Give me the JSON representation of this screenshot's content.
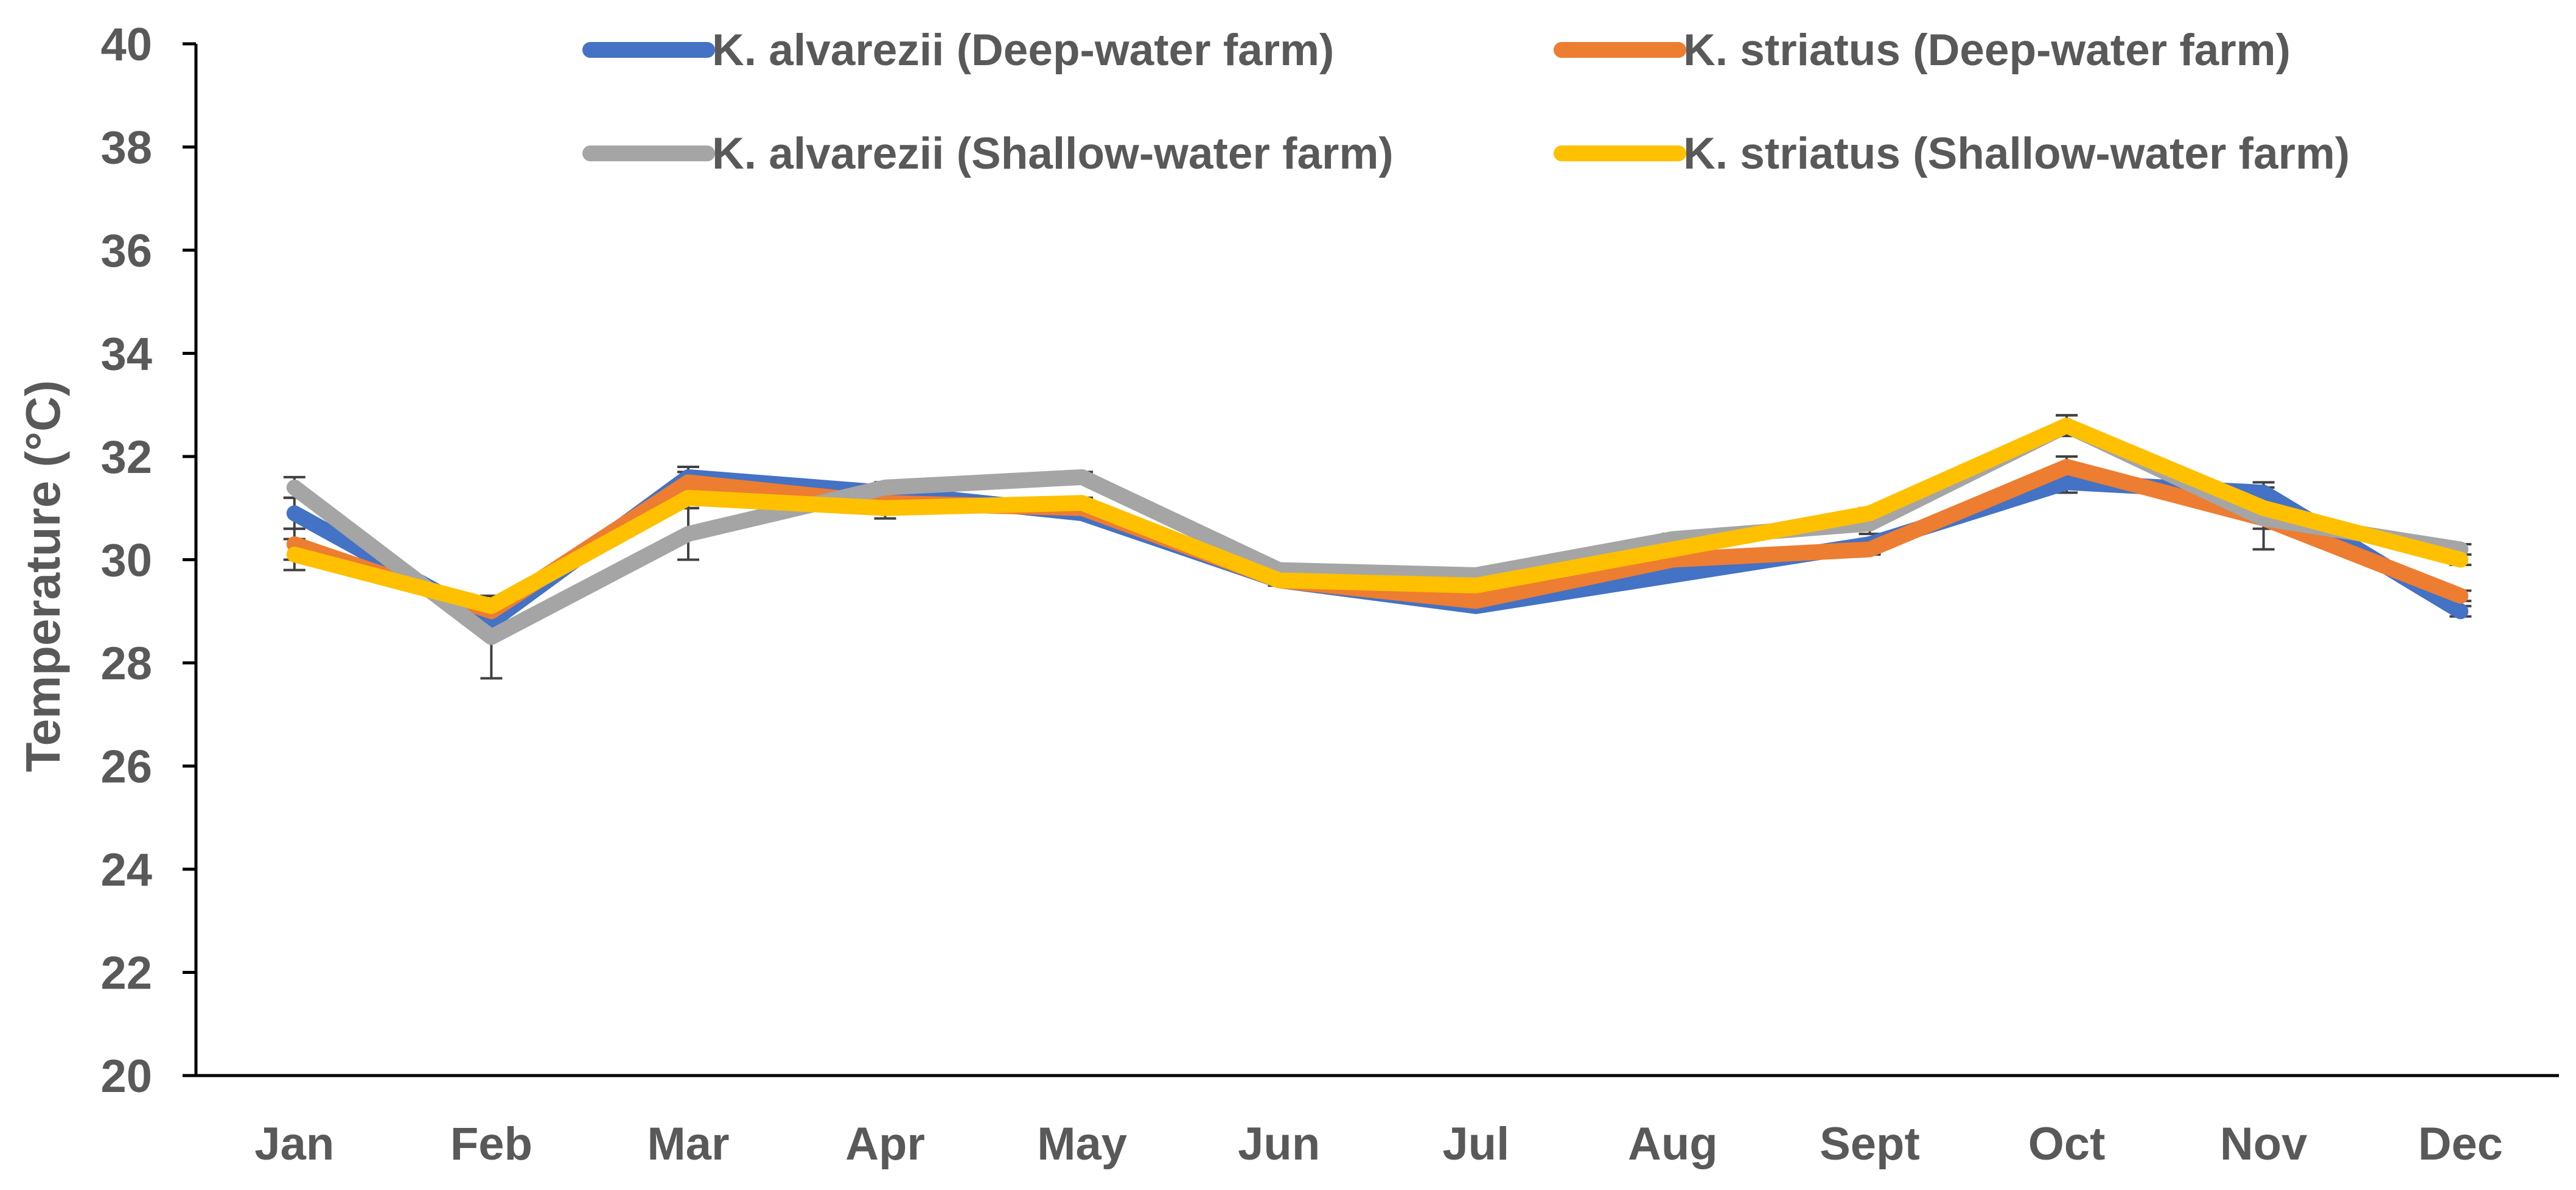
{
  "chart_data": {
    "type": "line",
    "title": "",
    "xlabel": "",
    "ylabel": "Temperature (°C)",
    "ylim": [
      20,
      40
    ],
    "yticks": [
      "20",
      "22",
      "24",
      "26",
      "28",
      "30",
      "32",
      "34",
      "36",
      "38",
      "40"
    ],
    "categories": [
      "Jan",
      "Feb",
      "Mar",
      "Apr",
      "May",
      "Jun",
      "Jul",
      "Aug",
      "Sept",
      "Oct",
      "Nov",
      "Dec"
    ],
    "grid": false,
    "legend_position": "top",
    "series": [
      {
        "name": "K. alvarezii (Deep-water farm)",
        "color": "#4472C4",
        "values": [
          30.9,
          28.8,
          31.6,
          31.3,
          30.9,
          29.6,
          29.1,
          29.7,
          30.3,
          31.5,
          31.3,
          29.0
        ],
        "error": [
          0.3,
          0.2,
          0.2,
          0.2,
          0.1,
          0.1,
          0.1,
          0.1,
          0.1,
          0.2,
          0.2,
          0.1
        ]
      },
      {
        "name": "K. striatus (Deep-water farm)",
        "color": "#ED7D31",
        "values": [
          30.3,
          29.0,
          31.5,
          31.1,
          31.0,
          29.6,
          29.2,
          30.0,
          30.2,
          31.8,
          30.8,
          29.3
        ],
        "error": [
          0.3,
          0.2,
          0.2,
          0.2,
          0.1,
          0.1,
          0.1,
          0.1,
          0.1,
          0.2,
          0.2,
          0.1
        ]
      },
      {
        "name": "K. alvarezii (Shallow-water farm)",
        "color": "#A5A5A5",
        "values": [
          31.4,
          28.5,
          30.5,
          31.4,
          31.6,
          29.8,
          29.7,
          30.4,
          30.7,
          32.6,
          30.8,
          30.2
        ],
        "error": [
          0.2,
          0.8,
          0.5,
          0.1,
          0.1,
          0.1,
          0.1,
          0.1,
          0.2,
          0.2,
          0.6,
          0.1
        ]
      },
      {
        "name": "K. striatus (Shallow-water farm)",
        "color": "#FFC000",
        "values": [
          30.1,
          29.1,
          31.2,
          31.0,
          31.1,
          29.6,
          29.5,
          30.2,
          30.9,
          32.6,
          31.0,
          30.0
        ],
        "error": [
          0.3,
          0.2,
          0.2,
          0.2,
          0.1,
          0.1,
          0.1,
          0.1,
          0.1,
          0.2,
          0.2,
          0.1
        ]
      }
    ],
    "legend_order": [
      0,
      1,
      2,
      3
    ]
  }
}
